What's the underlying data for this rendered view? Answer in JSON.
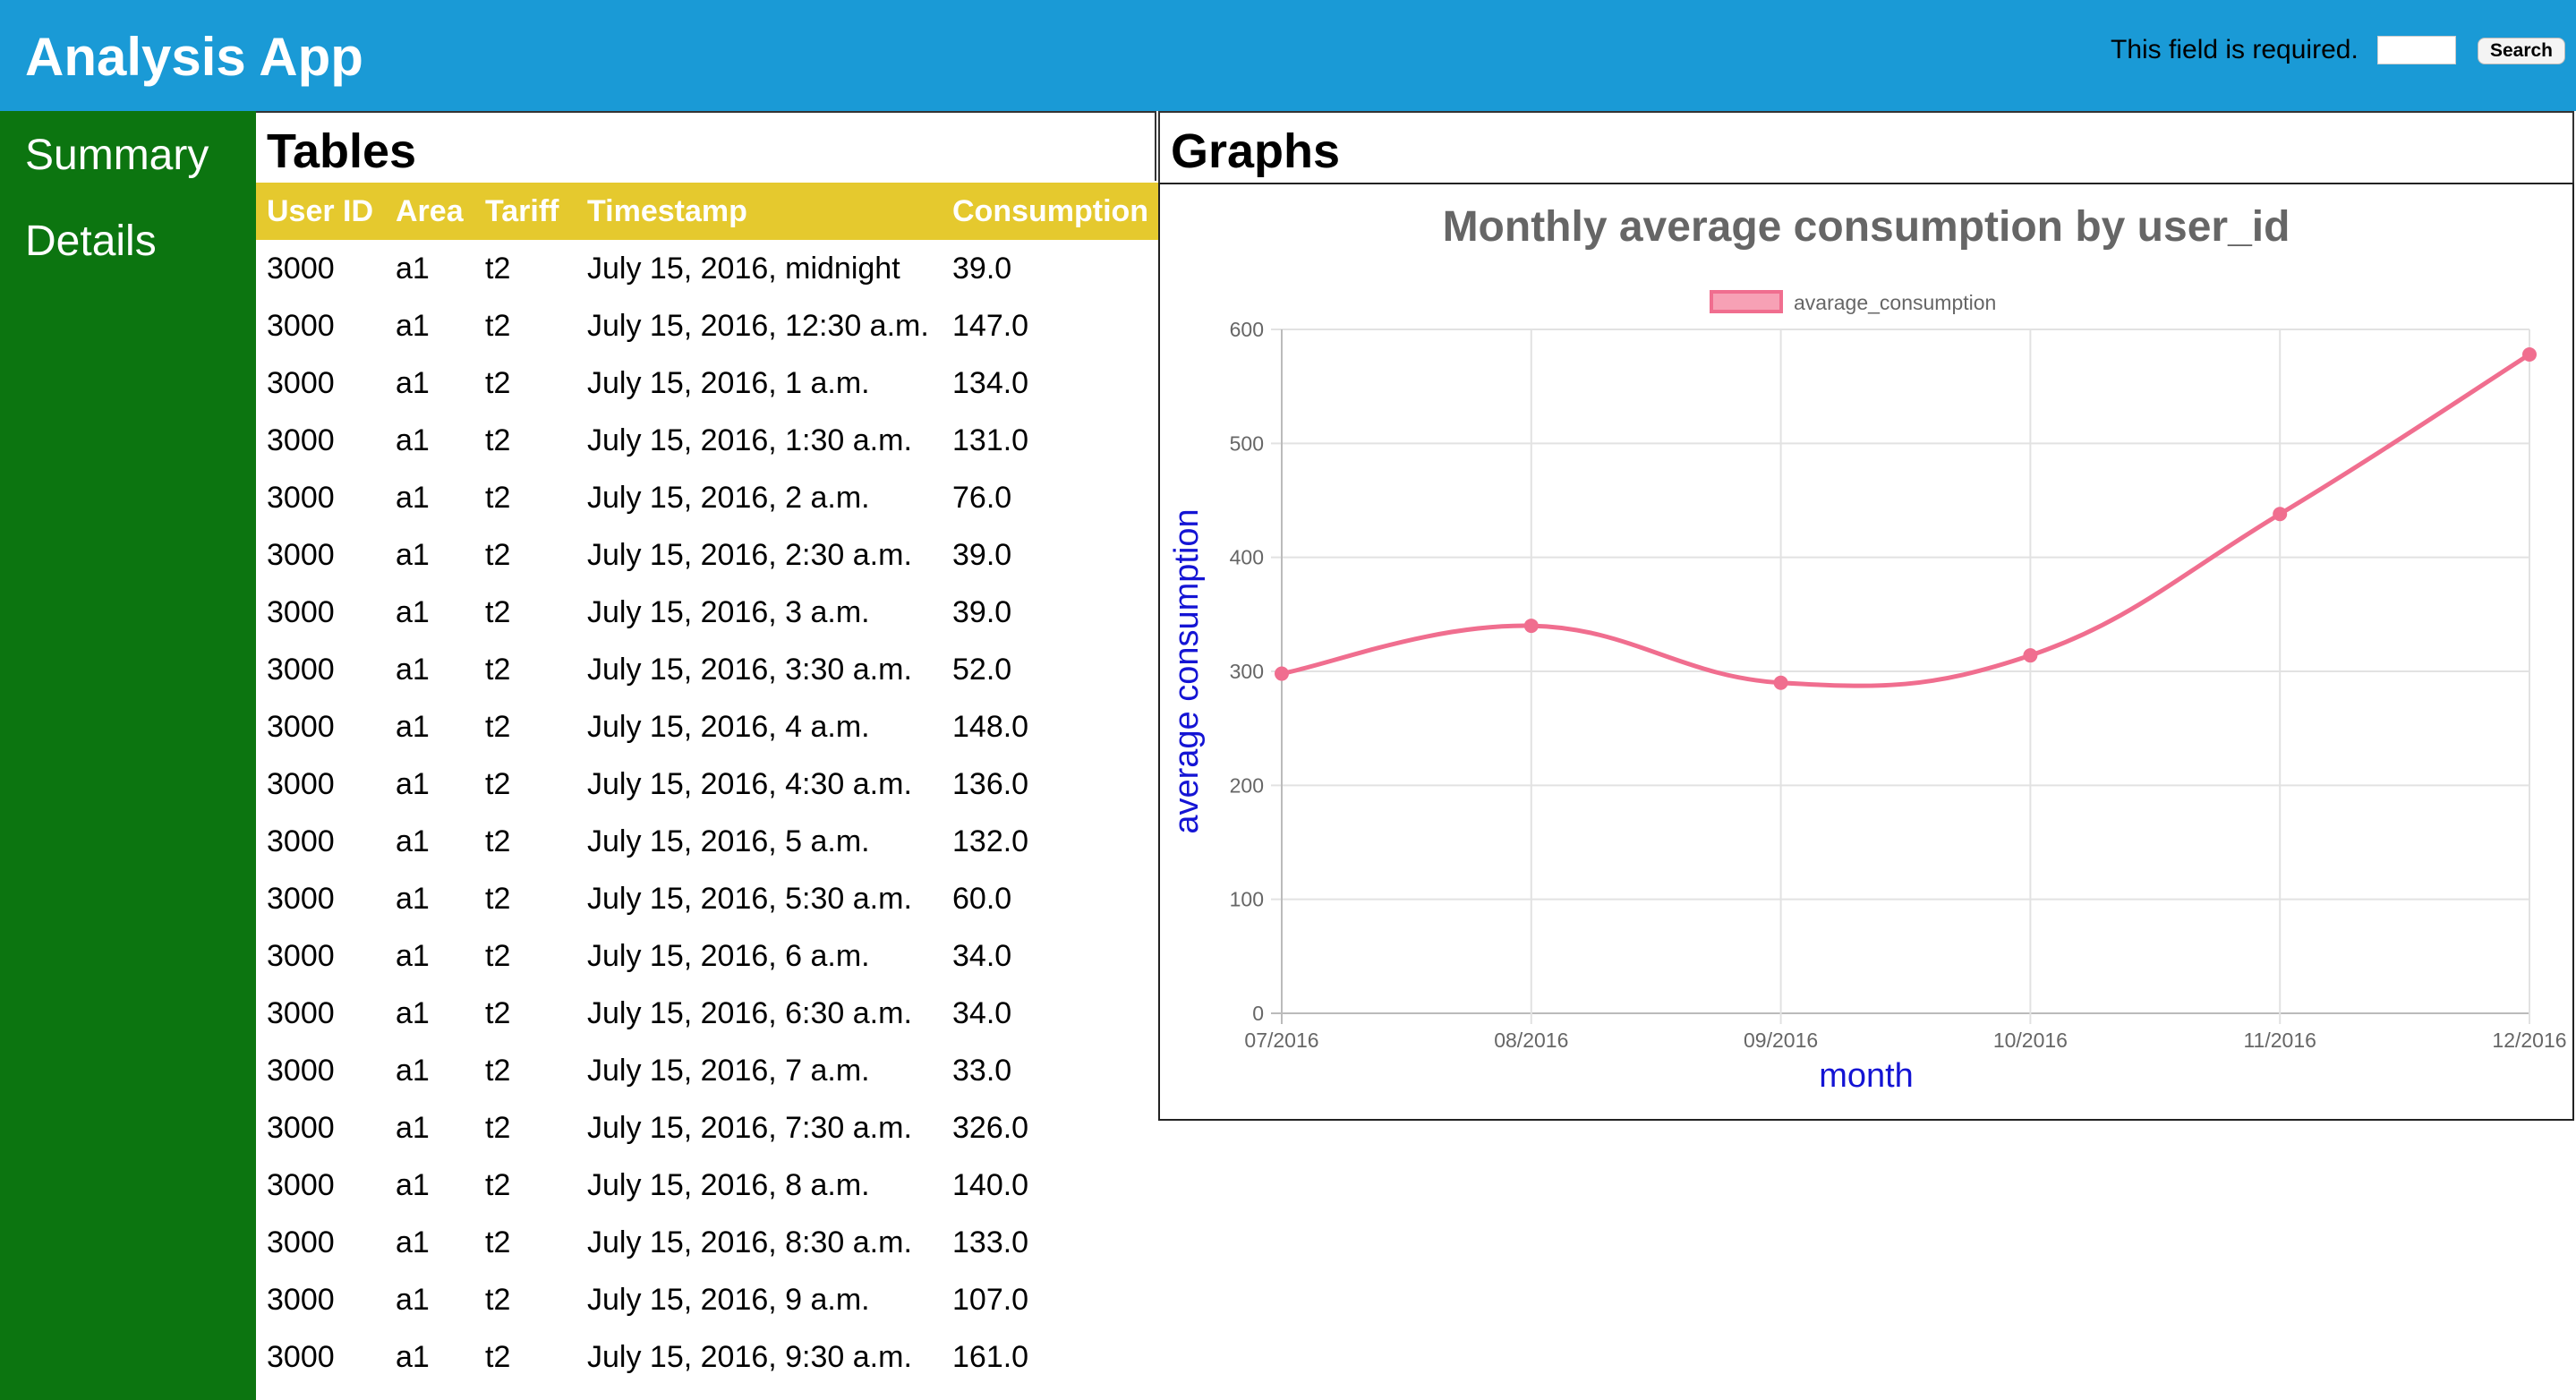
{
  "header": {
    "title": "Analysis App",
    "validation_message": "This field is required.",
    "search_placeholder": "",
    "search_button_label": "Search"
  },
  "sidebar": {
    "items": [
      {
        "label": "Summary"
      },
      {
        "label": "Details"
      }
    ]
  },
  "tables": {
    "title": "Tables",
    "columns": [
      "User ID",
      "Area",
      "Tariff",
      "Timestamp",
      "Consumption"
    ],
    "rows": [
      [
        "3000",
        "a1",
        "t2",
        "July 15, 2016, midnight",
        "39.0"
      ],
      [
        "3000",
        "a1",
        "t2",
        "July 15, 2016, 12:30 a.m.",
        "147.0"
      ],
      [
        "3000",
        "a1",
        "t2",
        "July 15, 2016, 1 a.m.",
        "134.0"
      ],
      [
        "3000",
        "a1",
        "t2",
        "July 15, 2016, 1:30 a.m.",
        "131.0"
      ],
      [
        "3000",
        "a1",
        "t2",
        "July 15, 2016, 2 a.m.",
        "76.0"
      ],
      [
        "3000",
        "a1",
        "t2",
        "July 15, 2016, 2:30 a.m.",
        "39.0"
      ],
      [
        "3000",
        "a1",
        "t2",
        "July 15, 2016, 3 a.m.",
        "39.0"
      ],
      [
        "3000",
        "a1",
        "t2",
        "July 15, 2016, 3:30 a.m.",
        "52.0"
      ],
      [
        "3000",
        "a1",
        "t2",
        "July 15, 2016, 4 a.m.",
        "148.0"
      ],
      [
        "3000",
        "a1",
        "t2",
        "July 15, 2016, 4:30 a.m.",
        "136.0"
      ],
      [
        "3000",
        "a1",
        "t2",
        "July 15, 2016, 5 a.m.",
        "132.0"
      ],
      [
        "3000",
        "a1",
        "t2",
        "July 15, 2016, 5:30 a.m.",
        "60.0"
      ],
      [
        "3000",
        "a1",
        "t2",
        "July 15, 2016, 6 a.m.",
        "34.0"
      ],
      [
        "3000",
        "a1",
        "t2",
        "July 15, 2016, 6:30 a.m.",
        "34.0"
      ],
      [
        "3000",
        "a1",
        "t2",
        "July 15, 2016, 7 a.m.",
        "33.0"
      ],
      [
        "3000",
        "a1",
        "t2",
        "July 15, 2016, 7:30 a.m.",
        "326.0"
      ],
      [
        "3000",
        "a1",
        "t2",
        "July 15, 2016, 8 a.m.",
        "140.0"
      ],
      [
        "3000",
        "a1",
        "t2",
        "July 15, 2016, 8:30 a.m.",
        "133.0"
      ],
      [
        "3000",
        "a1",
        "t2",
        "July 15, 2016, 9 a.m.",
        "107.0"
      ],
      [
        "3000",
        "a1",
        "t2",
        "July 15, 2016, 9:30 a.m.",
        "161.0"
      ]
    ]
  },
  "graphs": {
    "title": "Graphs"
  },
  "colors": {
    "header_bg": "#1a9ad6",
    "sidebar_bg": "#0c7510",
    "table_header_bg": "#e5c92e",
    "series_line": "#f06e8f",
    "series_fill": "#f7a1b5",
    "axis_title": "#1414d4"
  },
  "chart_data": {
    "type": "line",
    "title": "Monthly average consumption by user_id",
    "xlabel": "month",
    "ylabel": "average consumption",
    "categories": [
      "07/2016",
      "08/2016",
      "09/2016",
      "10/2016",
      "11/2016",
      "12/2016"
    ],
    "series": [
      {
        "name": "avarage_consumption",
        "values": [
          298,
          340,
          290,
          314,
          438,
          578
        ]
      }
    ],
    "ylim": [
      0,
      600
    ],
    "yticks": [
      0,
      100,
      200,
      300,
      400,
      500,
      600
    ],
    "grid": true,
    "legend": "top-center",
    "smooth": true
  }
}
